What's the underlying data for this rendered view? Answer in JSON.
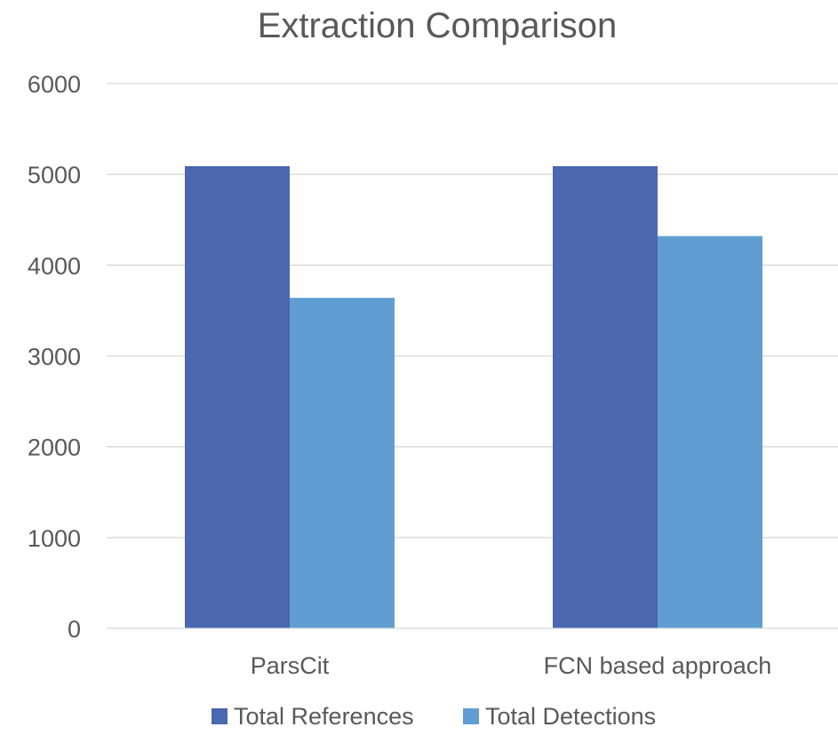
{
  "chart_data": {
    "type": "bar",
    "title": "Extraction Comparison",
    "xlabel": "",
    "ylabel": "",
    "categories": [
      "ParsCit",
      "FCN based approach"
    ],
    "series": [
      {
        "name": "Total References",
        "values": [
          5090,
          5090
        ],
        "color": "#4a67af"
      },
      {
        "name": "Total Detections",
        "values": [
          3640,
          4320
        ],
        "color": "#609ed2"
      }
    ],
    "ylim": [
      0,
      6000
    ],
    "yticks": [
      0,
      1000,
      2000,
      3000,
      4000,
      5000,
      6000
    ],
    "grid": true,
    "legend_position": "bottom"
  }
}
